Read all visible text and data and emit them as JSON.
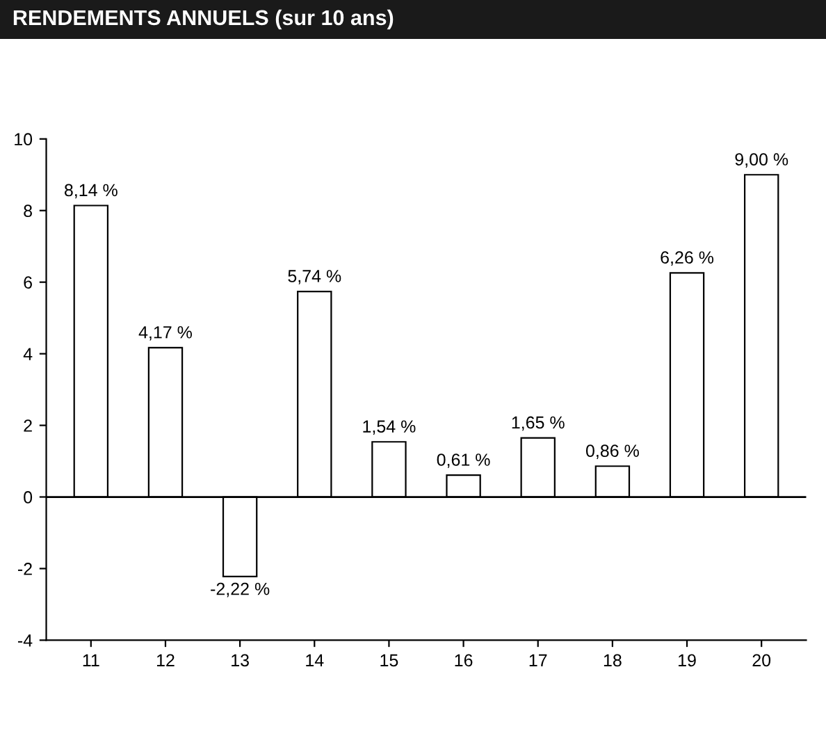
{
  "chart_data": {
    "type": "bar",
    "title": "RENDEMENTS ANNUELS (sur 10 ans)",
    "categories": [
      "11",
      "12",
      "13",
      "14",
      "15",
      "16",
      "17",
      "18",
      "19",
      "20"
    ],
    "values": [
      8.14,
      4.17,
      -2.22,
      5.74,
      1.54,
      0.61,
      1.65,
      0.86,
      6.26,
      9.0
    ],
    "value_labels": [
      "8,14 %",
      "4,17 %",
      "-2,22 %",
      "5,74 %",
      "1,54 %",
      "0,61 %",
      "1,65 %",
      "0,86 %",
      "6,26 %",
      "9,00 %"
    ],
    "color": "#ffffff",
    "ylim": [
      -4,
      10
    ],
    "yticks": [
      -4,
      -2,
      0,
      2,
      4,
      6,
      8,
      10
    ],
    "ref_lines": [
      {
        "axis": "y",
        "value": 0,
        "color": "#000000"
      }
    ],
    "grid": false,
    "legend": false
  }
}
